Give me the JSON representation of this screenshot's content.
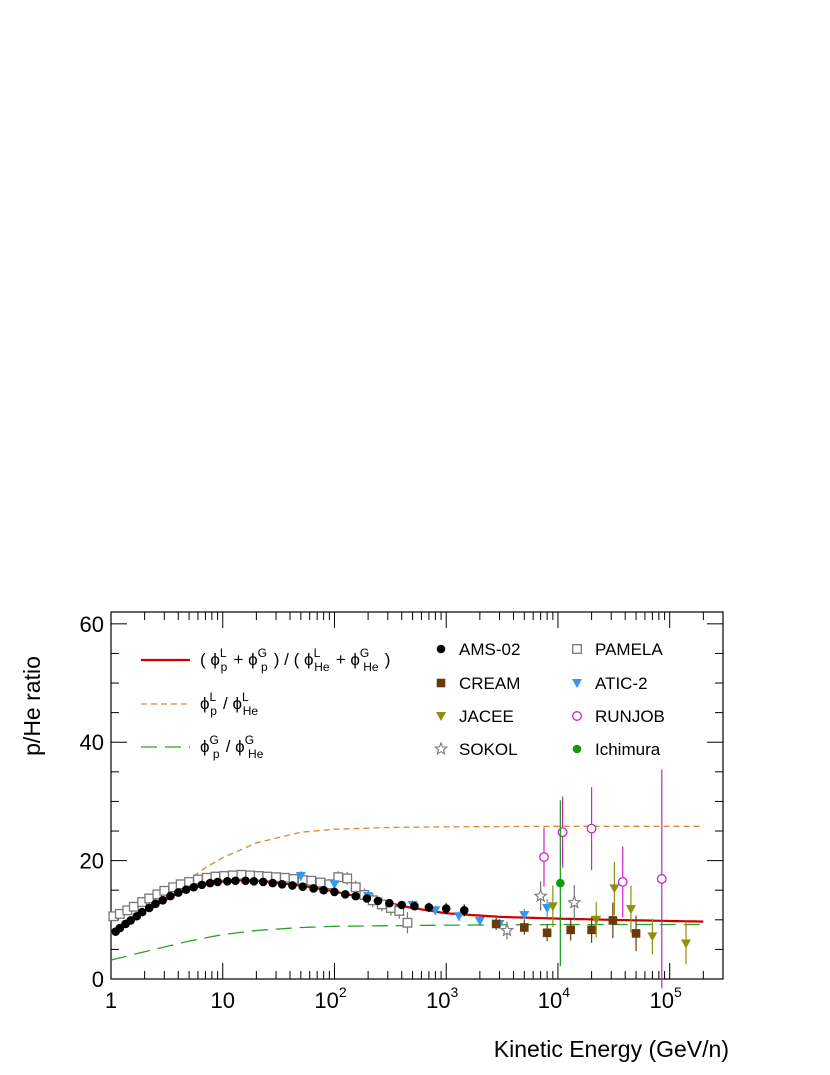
{
  "chart_data": {
    "type": "scatter",
    "title": "",
    "xlabel": "Kinetic Energy (GeV/n)",
    "ylabel": "p/He ratio",
    "x_scale": "log",
    "xlim": [
      1,
      300000
    ],
    "ylim": [
      0,
      62
    ],
    "x_ticks": [
      {
        "value": 1,
        "base": "1",
        "exp": ""
      },
      {
        "value": 10,
        "base": "10",
        "exp": ""
      },
      {
        "value": 100,
        "base": "10",
        "exp": "2"
      },
      {
        "value": 1000,
        "base": "10",
        "exp": "3"
      },
      {
        "value": 10000,
        "base": "10",
        "exp": "4"
      },
      {
        "value": 100000,
        "base": "10",
        "exp": "5"
      }
    ],
    "y_ticks": [
      {
        "value": 0,
        "label": "0"
      },
      {
        "value": 20,
        "label": "20"
      },
      {
        "value": 40,
        "label": "40"
      },
      {
        "value": 60,
        "label": "60"
      }
    ],
    "grid": false,
    "legend_placement": "top",
    "model_curves": [
      {
        "id": "total",
        "color": "#cc0000",
        "style": "solid",
        "formula": {
          "open": "( ",
          "phi": "ϕ",
          "terms": [
            [
              "p",
              "L"
            ],
            [
              "p",
              "G"
            ],
            [
              "He",
              "L"
            ],
            [
              "He",
              "G"
            ]
          ]
        },
        "points": [
          [
            1,
            8.0
          ],
          [
            2,
            11.5
          ],
          [
            4,
            14.5
          ],
          [
            7,
            16.0
          ],
          [
            12,
            16.7
          ],
          [
            20,
            16.6
          ],
          [
            50,
            15.8
          ],
          [
            100,
            14.8
          ],
          [
            200,
            13.5
          ],
          [
            500,
            12.0
          ],
          [
            1000,
            11.1
          ],
          [
            3000,
            10.5
          ],
          [
            10000,
            10.2
          ],
          [
            30000,
            10.0
          ],
          [
            100000,
            9.8
          ],
          [
            200000,
            9.7
          ]
        ]
      },
      {
        "id": "local",
        "color": "#dd8833",
        "style": "short-dash",
        "formula": {
          "phi": "ϕ",
          "terms": [
            [
              "p",
              "L"
            ],
            [
              "He",
              "L"
            ]
          ]
        },
        "points": [
          [
            1,
            7.8
          ],
          [
            2,
            11.5
          ],
          [
            4,
            15.5
          ],
          [
            7,
            18.8
          ],
          [
            10,
            20.5
          ],
          [
            20,
            23.0
          ],
          [
            50,
            24.8
          ],
          [
            100,
            25.3
          ],
          [
            300,
            25.6
          ],
          [
            1000,
            25.7
          ],
          [
            10000,
            25.8
          ],
          [
            200000,
            25.8
          ]
        ]
      },
      {
        "id": "galactic",
        "color": "#2aa02a",
        "style": "long-dash",
        "formula": {
          "phi": "ϕ",
          "terms": [
            [
              "p",
              "G"
            ],
            [
              "He",
              "G"
            ]
          ]
        },
        "points": [
          [
            1,
            3.2
          ],
          [
            2,
            4.6
          ],
          [
            5,
            6.4
          ],
          [
            10,
            7.5
          ],
          [
            20,
            8.2
          ],
          [
            50,
            8.7
          ],
          [
            100,
            8.9
          ],
          [
            300,
            9.0
          ],
          [
            1000,
            9.1
          ],
          [
            10000,
            9.2
          ],
          [
            200000,
            9.2
          ]
        ]
      }
    ],
    "series": [
      {
        "name": "AMS-02",
        "marker": "circle-filled",
        "color": "#000000",
        "points": [
          [
            1.1,
            8.0,
            0.3
          ],
          [
            1.2,
            8.6,
            0.3
          ],
          [
            1.35,
            9.3,
            0.3
          ],
          [
            1.5,
            9.9,
            0.3
          ],
          [
            1.7,
            10.6,
            0.3
          ],
          [
            1.9,
            11.3,
            0.3
          ],
          [
            2.2,
            12.0,
            0.3
          ],
          [
            2.5,
            12.7,
            0.3
          ],
          [
            2.9,
            13.3,
            0.3
          ],
          [
            3.4,
            14.0,
            0.3
          ],
          [
            4.0,
            14.6,
            0.3
          ],
          [
            4.7,
            15.1,
            0.3
          ],
          [
            5.5,
            15.5,
            0.3
          ],
          [
            6.5,
            15.9,
            0.3
          ],
          [
            7.7,
            16.2,
            0.3
          ],
          [
            9.0,
            16.4,
            0.3
          ],
          [
            11,
            16.5,
            0.3
          ],
          [
            13,
            16.6,
            0.3
          ],
          [
            16,
            16.6,
            0.3
          ],
          [
            19,
            16.5,
            0.3
          ],
          [
            23,
            16.4,
            0.3
          ],
          [
            28,
            16.2,
            0.3
          ],
          [
            34,
            16.0,
            0.3
          ],
          [
            42,
            15.8,
            0.3
          ],
          [
            52,
            15.6,
            0.3
          ],
          [
            65,
            15.3,
            0.3
          ],
          [
            80,
            15.0,
            0.3
          ],
          [
            100,
            14.7,
            0.4
          ],
          [
            125,
            14.3,
            0.4
          ],
          [
            155,
            14.0,
            0.4
          ],
          [
            195,
            13.6,
            0.5
          ],
          [
            245,
            13.2,
            0.5
          ],
          [
            310,
            12.8,
            0.5
          ],
          [
            400,
            12.5,
            0.6
          ],
          [
            520,
            12.3,
            0.7
          ],
          [
            700,
            12.1,
            0.8
          ],
          [
            1000,
            11.9,
            0.9
          ],
          [
            1450,
            11.6,
            1.0
          ]
        ]
      },
      {
        "name": "PAMELA",
        "marker": "square-open",
        "color": "#777777",
        "points": [
          [
            1.05,
            10.6,
            0.8
          ],
          [
            1.2,
            11.0,
            0.8
          ],
          [
            1.4,
            11.6,
            0.8
          ],
          [
            1.6,
            12.2,
            0.8
          ],
          [
            1.9,
            13.0,
            0.8
          ],
          [
            2.2,
            13.6,
            0.8
          ],
          [
            2.6,
            14.3,
            0.8
          ],
          [
            3.0,
            14.9,
            0.8
          ],
          [
            3.6,
            15.5,
            0.8
          ],
          [
            4.2,
            16.0,
            0.8
          ],
          [
            5.0,
            16.4,
            0.8
          ],
          [
            6.0,
            16.8,
            0.8
          ],
          [
            7.2,
            17.1,
            0.8
          ],
          [
            8.6,
            17.3,
            0.8
          ],
          [
            10.3,
            17.4,
            0.8
          ],
          [
            12.3,
            17.5,
            0.8
          ],
          [
            14.7,
            17.6,
            0.8
          ],
          [
            17.6,
            17.5,
            0.8
          ],
          [
            21,
            17.4,
            0.8
          ],
          [
            25,
            17.3,
            0.8
          ],
          [
            30,
            17.2,
            0.8
          ],
          [
            36,
            17.1,
            0.8
          ],
          [
            43,
            16.9,
            0.8
          ],
          [
            52,
            16.7,
            0.8
          ],
          [
            62,
            16.6,
            0.8
          ],
          [
            75,
            16.3,
            0.8
          ],
          [
            90,
            16.0,
            0.9
          ],
          [
            108,
            17.2,
            1.0
          ],
          [
            130,
            17.0,
            1.1
          ],
          [
            155,
            15.5,
            1.1
          ],
          [
            185,
            14.2,
            1.1
          ],
          [
            220,
            13.3,
            1.2
          ],
          [
            265,
            12.6,
            1.2
          ],
          [
            320,
            12.0,
            1.3
          ],
          [
            380,
            11.5,
            1.3
          ],
          [
            450,
            9.5,
            1.8
          ]
        ]
      },
      {
        "name": "CREAM",
        "marker": "square-filled",
        "color": "#6b3a0a",
        "points": [
          [
            2800,
            9.3,
            1.0
          ],
          [
            5000,
            8.7,
            1.2
          ],
          [
            8000,
            7.8,
            1.4
          ],
          [
            13000,
            8.3,
            1.8
          ],
          [
            20000,
            8.3,
            2.2
          ],
          [
            31000,
            9.9,
            3.0
          ],
          [
            50000,
            7.7,
            3.0
          ]
        ]
      },
      {
        "name": "ATIC-2",
        "marker": "triangle-down-filled",
        "color": "#3399ee",
        "points": [
          [
            50,
            17.4,
            0.8
          ],
          [
            100,
            16.0,
            0.8
          ],
          [
            200,
            14.0,
            0.8
          ],
          [
            500,
            12.5,
            0.8
          ],
          [
            800,
            11.6,
            0.8
          ],
          [
            1300,
            10.6,
            0.8
          ],
          [
            2000,
            9.8,
            0.8
          ],
          [
            3000,
            9.3,
            0.8
          ],
          [
            5000,
            10.8,
            1.0
          ],
          [
            8000,
            12.0,
            1.5
          ]
        ]
      },
      {
        "name": "JACEE",
        "marker": "triangle-down-filled",
        "color": "#8f8f10",
        "points": [
          [
            9000,
            12.3,
            3.5
          ],
          [
            22000,
            10.0,
            3.0
          ],
          [
            32000,
            15.3,
            4.5
          ],
          [
            45000,
            11.8,
            4.0
          ],
          [
            70000,
            7.2,
            3.0
          ],
          [
            140000,
            6.0,
            3.5
          ]
        ]
      },
      {
        "name": "RUNJOB",
        "marker": "circle-open",
        "color": "#cc22cc",
        "points": [
          [
            7500,
            20.6,
            5.0
          ],
          [
            11000,
            24.8,
            6.0
          ],
          [
            20000,
            25.4,
            7.0
          ],
          [
            38000,
            16.4,
            6.0
          ],
          [
            85000,
            16.9,
            18.5
          ]
        ]
      },
      {
        "name": "SOKOL",
        "marker": "star-open",
        "color": "#777777",
        "points": [
          [
            3500,
            8.2,
            1.5
          ],
          [
            7000,
            14.0,
            2.5
          ],
          [
            14000,
            12.9,
            3.0
          ]
        ]
      },
      {
        "name": "Ichimura",
        "marker": "circle-filled",
        "color": "#119911",
        "points": [
          [
            10500,
            16.2,
            14.0
          ]
        ]
      }
    ]
  }
}
